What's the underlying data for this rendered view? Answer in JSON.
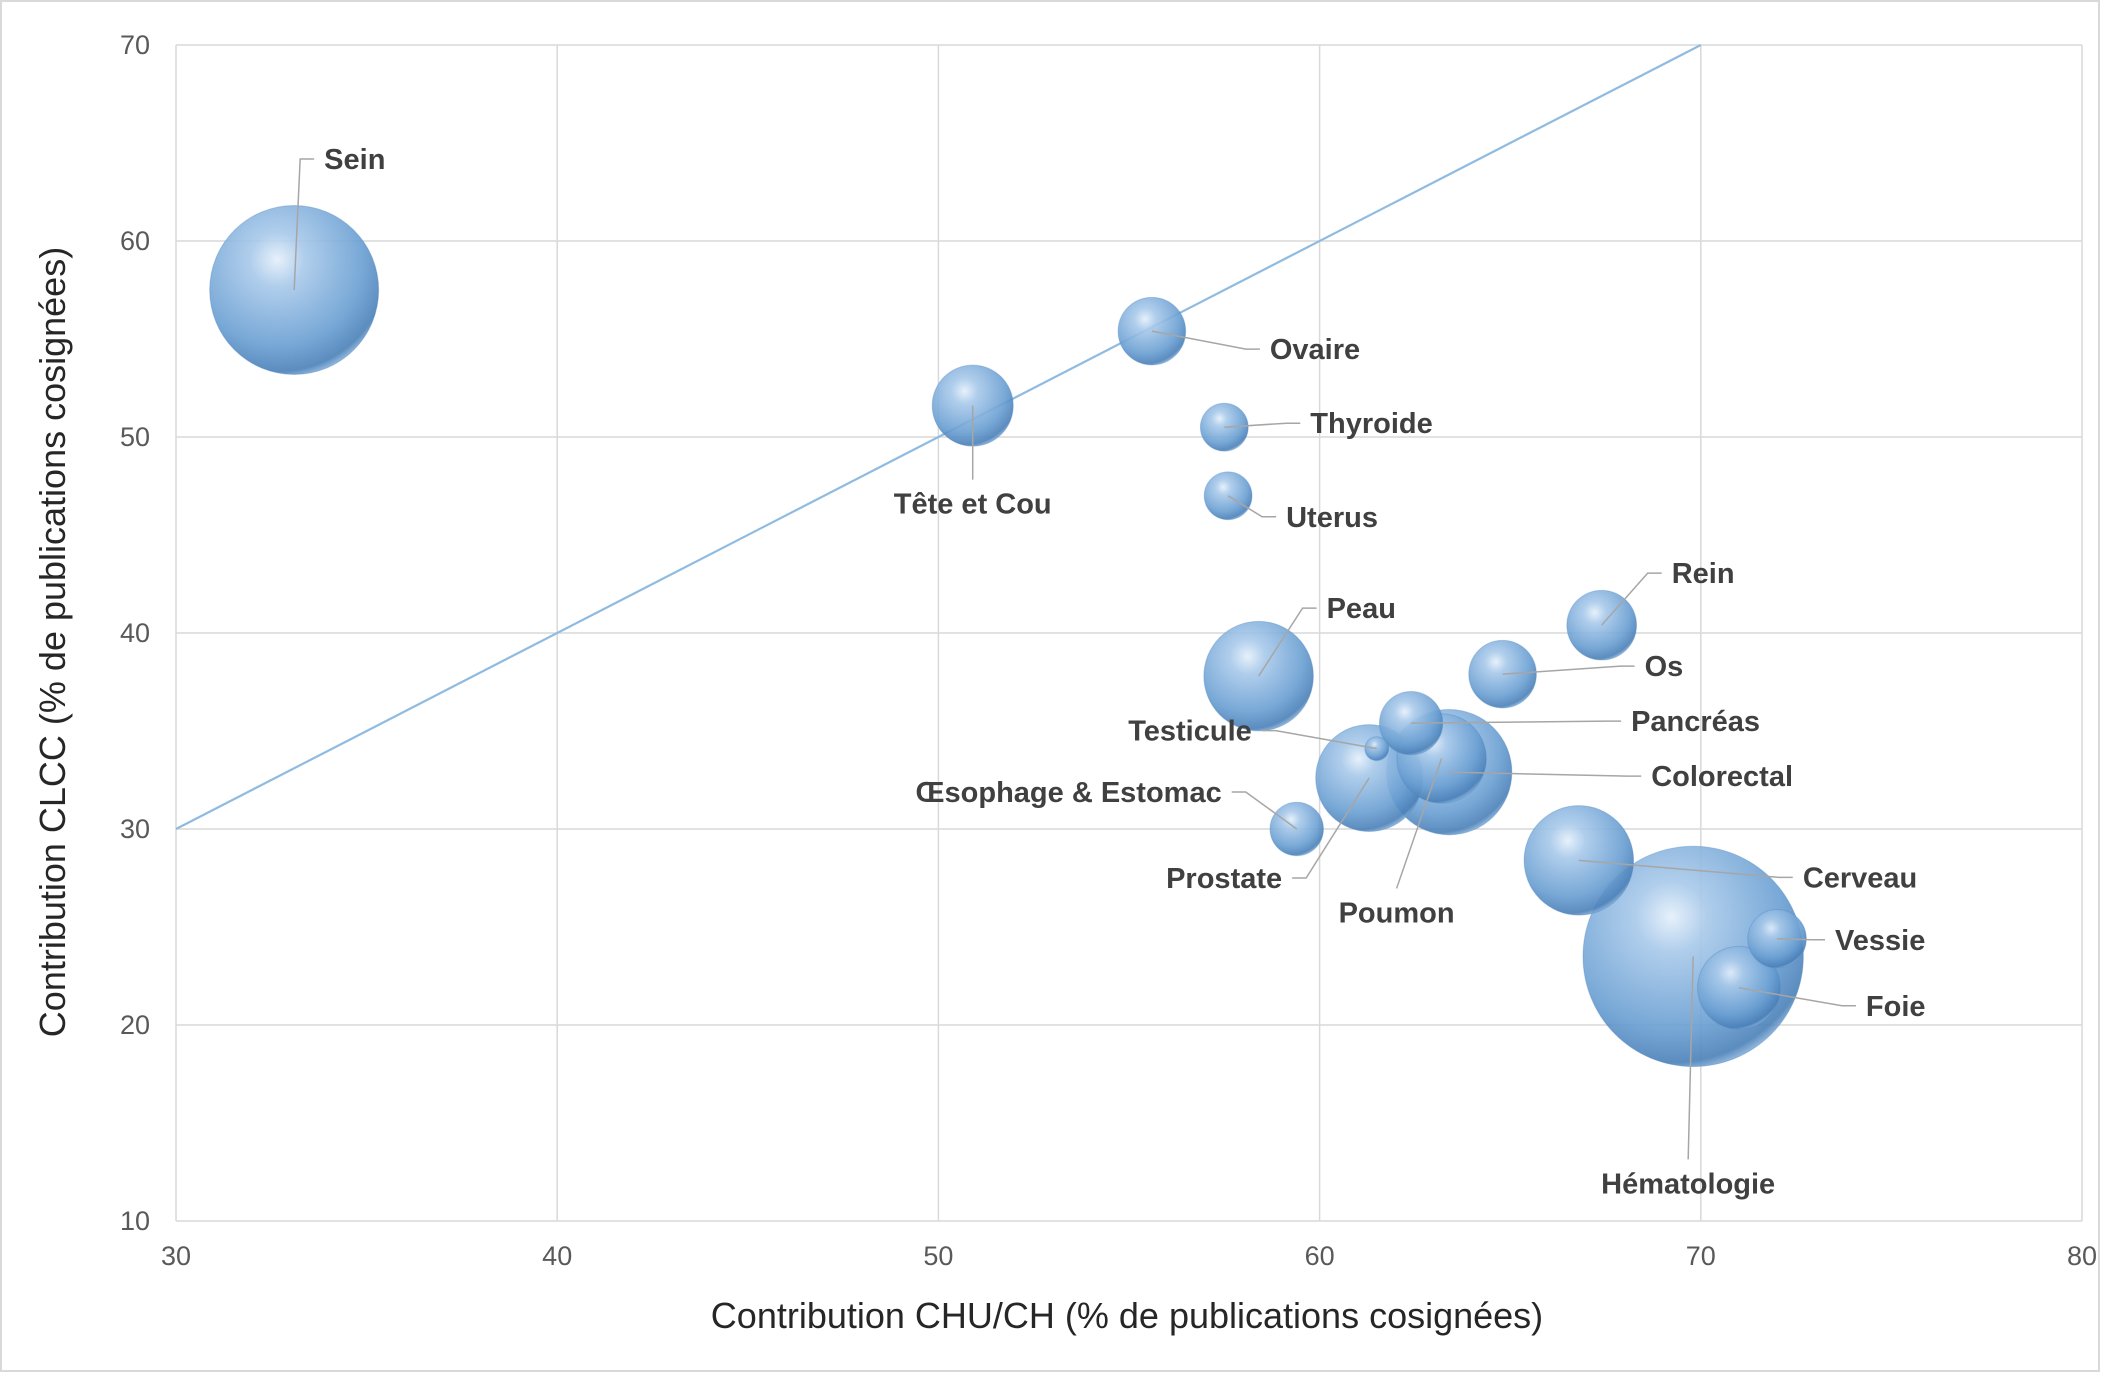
{
  "chart_data": {
    "type": "scatter",
    "title": "",
    "xlabel": "Contribution CHU/CH  (% de publications cosignées)",
    "ylabel": "Contribution CLCC (% de publications cosignées)",
    "xlim": [
      30,
      80
    ],
    "ylim": [
      10,
      70
    ],
    "xticks": [
      30,
      40,
      50,
      60,
      70,
      80
    ],
    "yticks": [
      10,
      20,
      30,
      40,
      50,
      60,
      70
    ],
    "grid": true,
    "legend": "none",
    "reference_line": {
      "x": [
        30,
        70
      ],
      "y": [
        30,
        70
      ]
    },
    "bubble_color": "#5b9bd5",
    "points": [
      {
        "label": "Sein",
        "x": 33.1,
        "y": 57.5,
        "size": 100
      },
      {
        "label": "Ovaire",
        "x": 55.6,
        "y": 55.4,
        "size": 16
      },
      {
        "label": "Tête et Cou",
        "x": 50.9,
        "y": 51.6,
        "size": 23
      },
      {
        "label": "Thyroide",
        "x": 57.5,
        "y": 50.5,
        "size": 8
      },
      {
        "label": "Uterus",
        "x": 57.6,
        "y": 47.0,
        "size": 8
      },
      {
        "label": "Rein",
        "x": 67.4,
        "y": 40.4,
        "size": 17
      },
      {
        "label": "Peau",
        "x": 58.4,
        "y": 37.8,
        "size": 42
      },
      {
        "label": "Os",
        "x": 64.8,
        "y": 37.9,
        "size": 16
      },
      {
        "label": "Pancréas",
        "x": 62.4,
        "y": 35.4,
        "size": 14
      },
      {
        "label": "Testicule",
        "x": 61.5,
        "y": 34.1,
        "size": 2
      },
      {
        "label": "Colorectal",
        "x": 63.4,
        "y": 32.9,
        "size": 55
      },
      {
        "label": "Œsophage & Estomac",
        "x": 59.4,
        "y": 30.0,
        "size": 10
      },
      {
        "label": "Prostate",
        "x": 61.3,
        "y": 32.6,
        "size": 40
      },
      {
        "label": "Poumon",
        "x": 63.2,
        "y": 33.6,
        "size": 28
      },
      {
        "label": "Cerveau",
        "x": 66.8,
        "y": 28.4,
        "size": 42
      },
      {
        "label": "Hématologie",
        "x": 69.8,
        "y": 23.5,
        "size": 170
      },
      {
        "label": "Vessie",
        "x": 72.0,
        "y": 24.4,
        "size": 12
      },
      {
        "label": "Foie",
        "x": 71.0,
        "y": 21.9,
        "size": 24
      }
    ]
  }
}
